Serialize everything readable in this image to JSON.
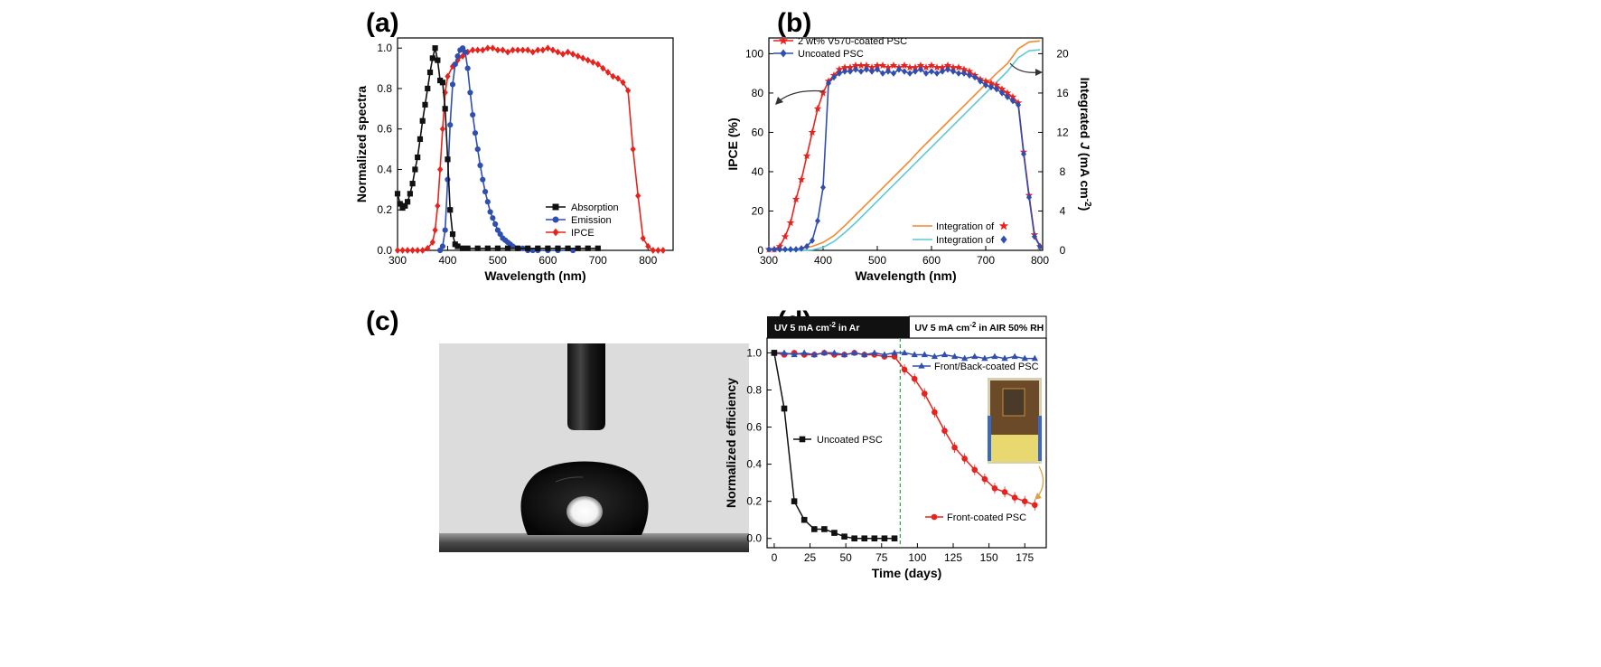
{
  "panel_labels": {
    "a": "(a)",
    "b": "(b)",
    "c": "(c)",
    "d": "(d)"
  },
  "colors": {
    "black": "#111111",
    "blue": "#2f4fb0",
    "red": "#e8231e",
    "orange": "#f28a2e",
    "cyan": "#5ec8d8",
    "green": "#28a745",
    "gold": "#d9a441"
  },
  "chart_data": [
    {
      "id": "a",
      "type": "line",
      "xlabel": "Wavelength (nm)",
      "ylabel": "Normalized spectra",
      "xlim": [
        300,
        850
      ],
      "ylim": [
        0,
        1.05
      ],
      "xticks": [
        300,
        400,
        500,
        600,
        700,
        800
      ],
      "yticks": [
        0.0,
        0.2,
        0.4,
        0.6,
        0.8,
        1.0
      ],
      "ytick_labels": [
        "0.0",
        "0.2",
        "0.4",
        "0.6",
        "0.8",
        "1.0"
      ],
      "legend_position": "bottom-right",
      "series": [
        {
          "name": "Absorption",
          "color": "#111111",
          "marker": "square",
          "x": [
            300,
            305,
            310,
            315,
            320,
            325,
            330,
            335,
            340,
            345,
            350,
            355,
            360,
            365,
            370,
            375,
            380,
            385,
            390,
            395,
            400,
            405,
            410,
            415,
            420,
            430,
            440,
            460,
            480,
            500,
            520,
            540,
            560,
            580,
            600,
            620,
            640,
            660,
            680,
            700
          ],
          "y": [
            0.28,
            0.23,
            0.21,
            0.22,
            0.24,
            0.28,
            0.33,
            0.4,
            0.46,
            0.55,
            0.64,
            0.72,
            0.8,
            0.88,
            0.95,
            1.0,
            0.94,
            0.84,
            0.83,
            0.7,
            0.45,
            0.2,
            0.08,
            0.03,
            0.02,
            0.01,
            0.01,
            0.01,
            0.01,
            0.01,
            0.01,
            0.01,
            0.01,
            0.01,
            0.01,
            0.01,
            0.01,
            0.01,
            0.01,
            0.01
          ]
        },
        {
          "name": "Emission",
          "color": "#2f4fb0",
          "marker": "circle",
          "x": [
            385,
            390,
            395,
            400,
            405,
            410,
            415,
            420,
            425,
            430,
            435,
            440,
            445,
            450,
            455,
            460,
            465,
            470,
            475,
            480,
            485,
            490,
            495,
            500,
            505,
            510,
            515,
            520,
            525,
            530,
            540,
            550,
            560,
            570,
            580,
            600,
            620,
            650
          ],
          "y": [
            0.0,
            0.02,
            0.1,
            0.35,
            0.62,
            0.82,
            0.92,
            0.96,
            0.99,
            1.0,
            0.98,
            0.9,
            0.78,
            0.67,
            0.58,
            0.5,
            0.42,
            0.35,
            0.29,
            0.24,
            0.19,
            0.16,
            0.13,
            0.1,
            0.08,
            0.06,
            0.05,
            0.04,
            0.03,
            0.02,
            0.01,
            0.01,
            0.0,
            0.0,
            0.0,
            0.0,
            0.0,
            0.0
          ]
        },
        {
          "name": "IPCE",
          "color": "#e8231e",
          "marker": "diamond",
          "x": [
            300,
            310,
            320,
            330,
            340,
            350,
            360,
            370,
            375,
            380,
            385,
            390,
            395,
            400,
            410,
            420,
            430,
            440,
            450,
            460,
            470,
            480,
            490,
            500,
            510,
            520,
            530,
            540,
            550,
            560,
            570,
            580,
            590,
            600,
            610,
            620,
            630,
            640,
            650,
            660,
            670,
            680,
            690,
            700,
            710,
            720,
            730,
            740,
            750,
            760,
            770,
            780,
            790,
            800,
            810,
            820,
            830
          ],
          "y": [
            0.0,
            0.0,
            0.0,
            0.0,
            0.0,
            0.0,
            0.01,
            0.04,
            0.1,
            0.22,
            0.4,
            0.6,
            0.78,
            0.86,
            0.91,
            0.94,
            0.96,
            0.98,
            0.99,
            0.99,
            0.99,
            1.0,
            1.0,
            0.99,
            0.99,
            0.98,
            0.99,
            0.99,
            0.99,
            0.99,
            0.98,
            0.99,
            0.99,
            1.0,
            0.99,
            0.98,
            0.97,
            0.98,
            0.97,
            0.96,
            0.95,
            0.94,
            0.93,
            0.92,
            0.9,
            0.88,
            0.86,
            0.85,
            0.83,
            0.79,
            0.5,
            0.27,
            0.06,
            0.02,
            0.0,
            0.0,
            0.0
          ]
        }
      ]
    },
    {
      "id": "b",
      "type": "line",
      "xlabel": "Wavelength (nm)",
      "ylabel": "IPCE (%)",
      "y2label": "Integrated J (mA cm-2)",
      "y2label_parts": [
        "Integrated ",
        "J",
        " (mA cm",
        "-2",
        ")"
      ],
      "xlim": [
        300,
        805
      ],
      "ylim": [
        0,
        108
      ],
      "y2lim": [
        0,
        21.6
      ],
      "xticks": [
        300,
        400,
        500,
        600,
        700,
        800
      ],
      "yticks": [
        0,
        20,
        40,
        60,
        80,
        100
      ],
      "y2ticks": [
        0,
        4,
        8,
        12,
        16,
        20
      ],
      "legend_position": "top-left",
      "legend_integration_position": "bottom-right",
      "series": [
        {
          "name": "2 wt% V570-coated PSC",
          "color": "#e8231e",
          "marker": "star",
          "axis": "left",
          "x": [
            300,
            310,
            320,
            330,
            340,
            350,
            360,
            370,
            380,
            390,
            400,
            410,
            420,
            430,
            440,
            450,
            460,
            470,
            480,
            490,
            500,
            510,
            520,
            530,
            540,
            550,
            560,
            570,
            580,
            590,
            600,
            610,
            620,
            630,
            640,
            650,
            660,
            670,
            680,
            690,
            700,
            710,
            720,
            730,
            740,
            750,
            760,
            770,
            780,
            790,
            800
          ],
          "y": [
            0.5,
            0.5,
            2,
            7,
            14,
            26,
            36,
            48,
            60,
            72,
            80,
            86,
            89,
            92,
            93,
            93,
            94,
            94,
            94,
            93,
            94,
            94,
            93,
            94,
            93,
            94,
            93,
            93,
            94,
            93,
            94,
            93,
            93,
            94,
            93,
            93,
            92,
            91,
            89,
            87,
            86,
            85,
            84,
            82,
            80,
            78,
            75,
            50,
            28,
            8,
            2
          ]
        },
        {
          "name": "Uncoated PSC",
          "color": "#2f4fb0",
          "marker": "diamond",
          "axis": "left",
          "x": [
            300,
            310,
            320,
            330,
            340,
            350,
            360,
            370,
            380,
            390,
            400,
            410,
            420,
            430,
            440,
            450,
            460,
            470,
            480,
            490,
            500,
            510,
            520,
            530,
            540,
            550,
            560,
            570,
            580,
            590,
            600,
            610,
            620,
            630,
            640,
            650,
            660,
            670,
            680,
            690,
            700,
            710,
            720,
            730,
            740,
            750,
            760,
            770,
            780,
            790,
            800
          ],
          "y": [
            0.5,
            0.5,
            0.5,
            0.5,
            0.5,
            0.5,
            1,
            2,
            5,
            15,
            32,
            85,
            88,
            90,
            91,
            91,
            92,
            91,
            92,
            91,
            92,
            90,
            91,
            90,
            92,
            91,
            90,
            91,
            92,
            90,
            91,
            90,
            91,
            92,
            91,
            90,
            90,
            89,
            88,
            86,
            84,
            83,
            82,
            80,
            78,
            76,
            74,
            49,
            27,
            7,
            2
          ]
        },
        {
          "name": "Integration of",
          "glyph": "star",
          "color": "#f28a2e",
          "marker": "none",
          "axis": "right",
          "x": [
            300,
            320,
            340,
            360,
            380,
            400,
            420,
            440,
            460,
            480,
            500,
            520,
            540,
            560,
            580,
            600,
            620,
            640,
            660,
            680,
            700,
            720,
            740,
            760,
            780,
            800
          ],
          "y": [
            0,
            0,
            0.05,
            0.15,
            0.4,
            0.8,
            1.5,
            2.5,
            3.6,
            4.7,
            5.8,
            6.9,
            8.0,
            9.1,
            10.3,
            11.4,
            12.5,
            13.6,
            14.7,
            15.8,
            16.9,
            18.0,
            19.0,
            20.5,
            21.2,
            21.3
          ]
        },
        {
          "name": "Integration of",
          "glyph": "diamond",
          "color": "#5ec8d8",
          "marker": "none",
          "axis": "right",
          "x": [
            300,
            320,
            340,
            360,
            380,
            400,
            420,
            440,
            460,
            480,
            500,
            520,
            540,
            560,
            580,
            600,
            620,
            640,
            660,
            680,
            700,
            720,
            740,
            760,
            780,
            800
          ],
          "y": [
            0,
            0,
            0,
            0,
            0.05,
            0.3,
            0.9,
            1.8,
            2.8,
            3.9,
            5.0,
            6.1,
            7.2,
            8.3,
            9.4,
            10.5,
            11.6,
            12.7,
            13.8,
            14.9,
            16.0,
            17.1,
            18.2,
            19.6,
            20.3,
            20.4
          ]
        }
      ]
    },
    {
      "id": "d",
      "type": "line",
      "xlabel": "Time (days)",
      "ylabel": "Normalized efficiency",
      "xlim": [
        -5,
        190
      ],
      "ylim": [
        -0.05,
        1.08
      ],
      "xticks": [
        0,
        25,
        50,
        75,
        100,
        125,
        150,
        175
      ],
      "yticks": [
        0.0,
        0.2,
        0.4,
        0.6,
        0.8,
        1.0
      ],
      "ytick_labels": [
        "0.0",
        "0.2",
        "0.4",
        "0.6",
        "0.8",
        "1.0"
      ],
      "divider_x": 88,
      "header_left": "UV 5 mA cm-2 in Ar",
      "header_left_parts": [
        "UV 5 mA cm",
        "-2",
        " in Ar"
      ],
      "header_right": "UV 5 mA cm-2 in AIR 50% RH",
      "header_right_parts": [
        "UV 5 mA cm",
        "-2",
        " in AIR 50% RH"
      ],
      "series": [
        {
          "name": "Uncoated PSC",
          "color": "#111111",
          "marker": "square",
          "x": [
            0,
            7,
            14,
            21,
            28,
            35,
            42,
            49,
            56,
            63,
            70,
            77,
            84
          ],
          "y": [
            1.0,
            0.7,
            0.2,
            0.1,
            0.05,
            0.05,
            0.03,
            0.01,
            0.0,
            0.0,
            0.0,
            0.0,
            0.0
          ]
        },
        {
          "name": "Front/Back-coated PSC",
          "color": "#2f4fb0",
          "marker": "triangle",
          "x": [
            0,
            7,
            14,
            21,
            28,
            35,
            42,
            49,
            56,
            63,
            70,
            77,
            84,
            91,
            98,
            105,
            112,
            119,
            126,
            133,
            140,
            147,
            154,
            161,
            168,
            175,
            182
          ],
          "y": [
            1.0,
            1.0,
            0.99,
            1.0,
            0.99,
            1.0,
            1.0,
            0.99,
            1.0,
            0.99,
            1.0,
            0.99,
            1.0,
            1.0,
            0.99,
            0.99,
            0.98,
            0.99,
            0.98,
            0.97,
            0.98,
            0.97,
            0.98,
            0.97,
            0.98,
            0.97,
            0.97
          ]
        },
        {
          "name": "Front-coated PSC",
          "color": "#e8231e",
          "marker": "circle",
          "x": [
            0,
            7,
            14,
            21,
            28,
            35,
            42,
            49,
            56,
            63,
            70,
            77,
            84,
            91,
            98,
            105,
            112,
            119,
            126,
            133,
            140,
            147,
            154,
            161,
            168,
            175,
            182
          ],
          "y": [
            1.0,
            0.99,
            1.0,
            0.99,
            0.99,
            1.0,
            0.99,
            0.99,
            1.0,
            0.99,
            0.99,
            0.98,
            0.98,
            0.91,
            0.86,
            0.78,
            0.68,
            0.58,
            0.49,
            0.43,
            0.37,
            0.32,
            0.27,
            0.25,
            0.22,
            0.2,
            0.18
          ]
        }
      ]
    }
  ]
}
